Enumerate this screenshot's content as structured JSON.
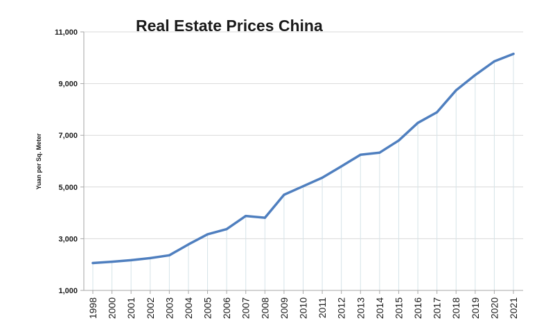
{
  "chart_data": {
    "type": "line",
    "title": "Real Estate Prices China",
    "xlabel": "",
    "ylabel": "Yuan per Sq. Meter",
    "ylim": [
      1000,
      11000
    ],
    "yticks": [
      "1,000",
      "3,000",
      "5,000",
      "7,000",
      "9,000",
      "11,000"
    ],
    "ytick_values": [
      1000,
      3000,
      5000,
      7000,
      9000,
      11000
    ],
    "categories": [
      "1998",
      "2000",
      "2001",
      "2002",
      "2003",
      "2004",
      "2005",
      "2006",
      "2007",
      "2008",
      "2009",
      "2010",
      "2011",
      "2012",
      "2013",
      "2014",
      "2015",
      "2016",
      "2017",
      "2018",
      "2019",
      "2020",
      "2021"
    ],
    "series": [
      {
        "values": [
          2060,
          2110,
          2170,
          2250,
          2360,
          2780,
          3170,
          3370,
          3880,
          3810,
          4700,
          5030,
          5360,
          5800,
          6250,
          6330,
          6800,
          7480,
          7890,
          8740,
          9330,
          9860,
          10150
        ],
        "color": "#4f7fbf"
      }
    ],
    "grid": true,
    "legend": "none"
  }
}
